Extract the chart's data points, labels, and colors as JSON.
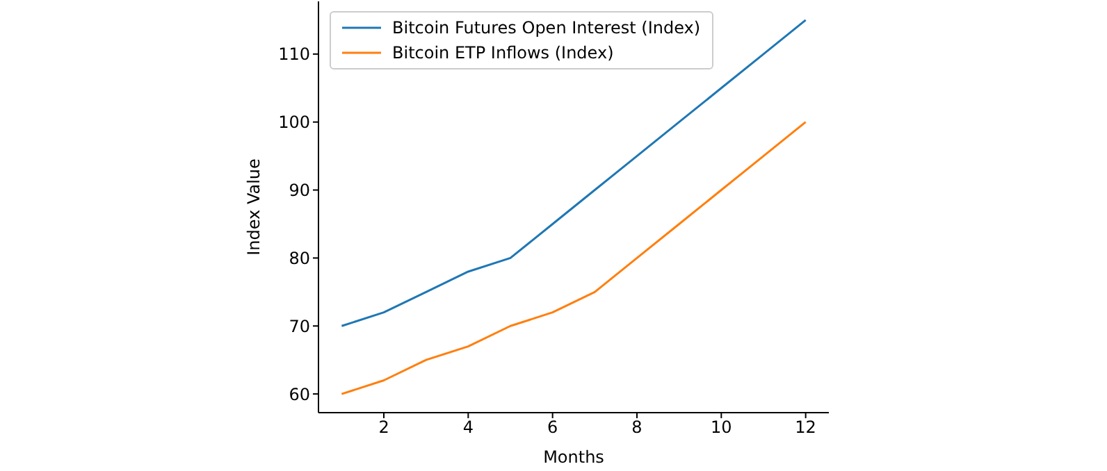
{
  "chart_data": {
    "type": "line",
    "xlabel": "Months",
    "ylabel": "Index Value",
    "x": [
      1,
      2,
      3,
      4,
      5,
      6,
      7,
      8,
      9,
      10,
      11,
      12
    ],
    "series": [
      {
        "name": "Bitcoin Futures Open Interest (Index)",
        "color": "#1f77b4",
        "values": [
          70,
          72,
          75,
          78,
          80,
          85,
          90,
          95,
          100,
          105,
          110,
          115
        ]
      },
      {
        "name": "Bitcoin ETP Inflows (Index)",
        "color": "#ff7f0e",
        "values": [
          60,
          62,
          65,
          67,
          70,
          72,
          75,
          80,
          85,
          90,
          95,
          100
        ]
      }
    ],
    "xlim": [
      0.45,
      12.55
    ],
    "xticks": [
      2,
      4,
      6,
      8,
      10,
      12
    ],
    "ylim": [
      57.25,
      117.75
    ],
    "yticks": [
      60,
      70,
      80,
      90,
      100,
      110
    ],
    "grid": false,
    "legend": "top left",
    "marker": "none",
    "line_style": "solid"
  }
}
